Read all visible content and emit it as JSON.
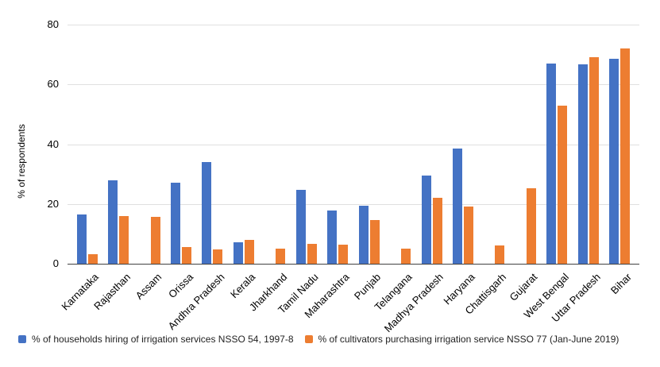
{
  "chart_data": {
    "type": "bar",
    "title": "",
    "xlabel": "",
    "ylabel": "% of respondents",
    "ylim": [
      0,
      80
    ],
    "yticks": [
      0,
      20,
      40,
      60,
      80
    ],
    "grid": true,
    "legend_position": "bottom-left",
    "categories": [
      "Karnataka",
      "Rajasthan",
      "Assam",
      "Orissa",
      "Andhra Pradesh",
      "Kerala",
      "Jharkhand",
      "Tamil Nadu",
      "Maharashtra",
      "Punjab",
      "Telangana",
      "Madhya Pradesh",
      "Haryana",
      "Chattisgarh",
      "Gujarat",
      "West Bengal",
      "Uttar Pradesh",
      "Bihar"
    ],
    "series": [
      {
        "id": "nsso54",
        "name": "% of households hiring of irrigation services NSSO 54, 1997-8",
        "color": "#4472C4",
        "values": [
          16.5,
          28,
          0,
          27,
          34,
          7.3,
          0,
          24.7,
          17.8,
          19.4,
          0,
          29.5,
          38.5,
          0,
          0,
          67,
          66.7,
          68.5
        ]
      },
      {
        "id": "nsso77",
        "name": "% of cultivators purchasing irrigation service NSSO 77 (Jan-June 2019)",
        "color": "#ED7D31",
        "values": [
          3.3,
          16,
          15.6,
          5.5,
          4.8,
          8,
          5,
          6.6,
          6.3,
          14.6,
          5,
          22,
          19.2,
          6.1,
          25.2,
          53,
          69,
          72
        ]
      }
    ]
  }
}
